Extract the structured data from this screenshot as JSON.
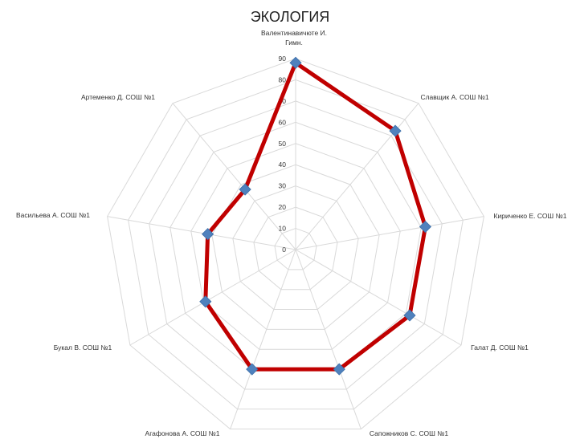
{
  "chart_data": {
    "type": "radar",
    "title": "ЭКОЛОГИЯ",
    "categories": [
      [
        "Валентинавичюте И.",
        "Гимн."
      ],
      [
        "Славщик  А. СОШ №1"
      ],
      [
        "Кириченко Е. СОШ №1"
      ],
      [
        "Галат Д.  СОШ №1"
      ],
      [
        "Сапожников С. СОШ №1"
      ],
      [
        "Агафонова А. СОШ №1"
      ],
      [
        "Букал В. СОШ №1"
      ],
      [
        "Васильева А. СОШ №1"
      ],
      [
        "Артеменко Д.  СОШ №1"
      ]
    ],
    "series": [
      {
        "values": [
          88,
          73,
          62,
          62,
          60,
          60,
          49,
          42,
          37
        ]
      }
    ],
    "rlim": [
      0,
      90
    ],
    "ticks": [
      0,
      10,
      20,
      30,
      40,
      50,
      60,
      70,
      80,
      90
    ],
    "grid": true,
    "colors": {
      "line": "#c00000",
      "marker": "#4f81bd",
      "grid": "#d9d9d9"
    }
  }
}
